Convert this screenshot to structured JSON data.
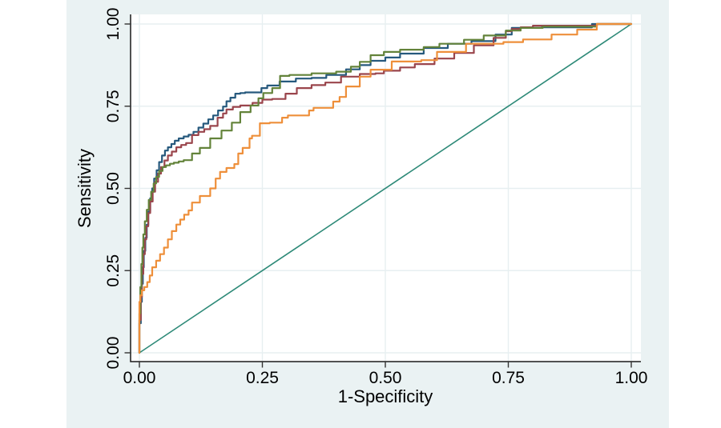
{
  "chart_data": {
    "type": "line",
    "subtype": "roc-curves",
    "title": "",
    "xlabel": "1-Specificity",
    "ylabel": "Sensitivity",
    "xlim": [
      0,
      1
    ],
    "ylim": [
      0,
      1
    ],
    "x_ticks": [
      0,
      0.25,
      0.5,
      0.75,
      1
    ],
    "y_ticks": [
      0,
      0.25,
      0.5,
      0.75,
      1
    ],
    "x_tick_labels": [
      "0.00",
      "0.25",
      "0.50",
      "0.75",
      "1.00"
    ],
    "y_tick_labels": [
      "0.00",
      "0.25",
      "0.50",
      "0.75",
      "1.00"
    ],
    "grid": "both",
    "legend_position": "none",
    "colors": {
      "graph_region_bg": "#eaf2f3",
      "plot_bg": "#ffffff",
      "gridline": "#e7eff1",
      "axis": "#1a1a1a",
      "tick": "#333333"
    },
    "series": [
      {
        "id": "reference",
        "name": "reference-diagonal",
        "color": "#2e8a78",
        "width": 1.6,
        "step": false,
        "points": [
          [
            0,
            0
          ],
          [
            1,
            1
          ]
        ]
      },
      {
        "id": "navy",
        "name": "roc-curve-navy",
        "color": "#26597d",
        "width": 2.2,
        "step": true,
        "points": [
          [
            0,
            0
          ],
          [
            0.003,
            0.09
          ],
          [
            0.005,
            0.155
          ],
          [
            0.007,
            0.21
          ],
          [
            0.009,
            0.26
          ],
          [
            0.012,
            0.31
          ],
          [
            0.015,
            0.35
          ],
          [
            0.018,
            0.39
          ],
          [
            0.022,
            0.43
          ],
          [
            0.026,
            0.47
          ],
          [
            0.03,
            0.5
          ],
          [
            0.035,
            0.53
          ],
          [
            0.04,
            0.555
          ],
          [
            0.046,
            0.58
          ],
          [
            0.052,
            0.6
          ],
          [
            0.058,
            0.615
          ],
          [
            0.065,
            0.625
          ],
          [
            0.072,
            0.635
          ],
          [
            0.08,
            0.645
          ],
          [
            0.09,
            0.652
          ],
          [
            0.1,
            0.658
          ],
          [
            0.11,
            0.663
          ],
          [
            0.12,
            0.672
          ],
          [
            0.13,
            0.685
          ],
          [
            0.14,
            0.697
          ],
          [
            0.15,
            0.71
          ],
          [
            0.16,
            0.722
          ],
          [
            0.17,
            0.737
          ],
          [
            0.177,
            0.749
          ],
          [
            0.185,
            0.765
          ],
          [
            0.195,
            0.776
          ],
          [
            0.205,
            0.788
          ],
          [
            0.215,
            0.79
          ],
          [
            0.248,
            0.792
          ],
          [
            0.26,
            0.805
          ],
          [
            0.285,
            0.813
          ],
          [
            0.318,
            0.825
          ],
          [
            0.35,
            0.834
          ],
          [
            0.38,
            0.836
          ],
          [
            0.42,
            0.845
          ],
          [
            0.448,
            0.862
          ],
          [
            0.47,
            0.875
          ],
          [
            0.5,
            0.888
          ],
          [
            0.53,
            0.898
          ],
          [
            0.578,
            0.91
          ],
          [
            0.627,
            0.927
          ],
          [
            0.675,
            0.94
          ],
          [
            0.724,
            0.948
          ],
          [
            0.757,
            0.968
          ],
          [
            0.818,
            0.988
          ],
          [
            0.92,
            0.99
          ],
          [
            0.95,
            1
          ],
          [
            1,
            1
          ]
        ]
      },
      {
        "id": "maroon",
        "name": "roc-curve-maroon",
        "color": "#9a454c",
        "width": 2.2,
        "step": true,
        "points": [
          [
            0,
            0
          ],
          [
            0.003,
            0.1
          ],
          [
            0.005,
            0.17
          ],
          [
            0.008,
            0.24
          ],
          [
            0.011,
            0.3
          ],
          [
            0.014,
            0.345
          ],
          [
            0.018,
            0.385
          ],
          [
            0.022,
            0.425
          ],
          [
            0.027,
            0.46
          ],
          [
            0.032,
            0.49
          ],
          [
            0.038,
            0.52
          ],
          [
            0.044,
            0.545
          ],
          [
            0.051,
            0.565
          ],
          [
            0.058,
            0.585
          ],
          [
            0.066,
            0.6
          ],
          [
            0.075,
            0.612
          ],
          [
            0.085,
            0.625
          ],
          [
            0.095,
            0.632
          ],
          [
            0.107,
            0.638
          ],
          [
            0.12,
            0.662
          ],
          [
            0.132,
            0.672
          ],
          [
            0.144,
            0.68
          ],
          [
            0.159,
            0.69
          ],
          [
            0.17,
            0.715
          ],
          [
            0.177,
            0.728
          ],
          [
            0.19,
            0.74
          ],
          [
            0.205,
            0.748
          ],
          [
            0.23,
            0.752
          ],
          [
            0.25,
            0.76
          ],
          [
            0.27,
            0.77
          ],
          [
            0.297,
            0.772
          ],
          [
            0.32,
            0.788
          ],
          [
            0.35,
            0.805
          ],
          [
            0.378,
            0.814
          ],
          [
            0.41,
            0.822
          ],
          [
            0.448,
            0.84
          ],
          [
            0.48,
            0.848
          ],
          [
            0.497,
            0.85
          ],
          [
            0.53,
            0.858
          ],
          [
            0.56,
            0.868
          ],
          [
            0.6,
            0.878
          ],
          [
            0.64,
            0.895
          ],
          [
            0.68,
            0.912
          ],
          [
            0.72,
            0.935
          ],
          [
            0.745,
            0.958
          ],
          [
            0.757,
            0.978
          ],
          [
            0.775,
            0.985
          ],
          [
            0.8,
            0.99
          ],
          [
            0.93,
            0.995
          ],
          [
            0.96,
            1
          ],
          [
            1,
            1
          ]
        ]
      },
      {
        "id": "green",
        "name": "roc-curve-green",
        "color": "#63833a",
        "width": 2.2,
        "step": true,
        "points": [
          [
            0,
            0
          ],
          [
            0.002,
            0.12
          ],
          [
            0.004,
            0.2
          ],
          [
            0.006,
            0.27
          ],
          [
            0.008,
            0.32
          ],
          [
            0.011,
            0.36
          ],
          [
            0.015,
            0.4
          ],
          [
            0.019,
            0.435
          ],
          [
            0.024,
            0.465
          ],
          [
            0.029,
            0.49
          ],
          [
            0.034,
            0.515
          ],
          [
            0.04,
            0.535
          ],
          [
            0.047,
            0.553
          ],
          [
            0.054,
            0.565
          ],
          [
            0.062,
            0.57
          ],
          [
            0.07,
            0.575
          ],
          [
            0.08,
            0.578
          ],
          [
            0.09,
            0.582
          ],
          [
            0.107,
            0.586
          ],
          [
            0.123,
            0.606
          ],
          [
            0.144,
            0.623
          ],
          [
            0.167,
            0.652
          ],
          [
            0.188,
            0.676
          ],
          [
            0.205,
            0.7
          ],
          [
            0.226,
            0.732
          ],
          [
            0.242,
            0.752
          ],
          [
            0.252,
            0.774
          ],
          [
            0.27,
            0.79
          ],
          [
            0.286,
            0.805
          ],
          [
            0.305,
            0.842
          ],
          [
            0.35,
            0.845
          ],
          [
            0.4,
            0.85
          ],
          [
            0.43,
            0.855
          ],
          [
            0.448,
            0.87
          ],
          [
            0.47,
            0.885
          ],
          [
            0.497,
            0.905
          ],
          [
            0.53,
            0.915
          ],
          [
            0.578,
            0.922
          ],
          [
            0.61,
            0.93
          ],
          [
            0.66,
            0.94
          ],
          [
            0.7,
            0.952
          ],
          [
            0.745,
            0.965
          ],
          [
            0.775,
            0.98
          ],
          [
            0.82,
            0.988
          ],
          [
            0.93,
            0.992
          ],
          [
            0.955,
            1
          ],
          [
            1,
            1
          ]
        ]
      },
      {
        "id": "orange",
        "name": "roc-curve-orange",
        "color": "#ee8f3a",
        "width": 2.2,
        "step": true,
        "points": [
          [
            0,
            0
          ],
          [
            0.002,
            0.155
          ],
          [
            0.005,
            0.175
          ],
          [
            0.01,
            0.19
          ],
          [
            0.016,
            0.2
          ],
          [
            0.021,
            0.215
          ],
          [
            0.026,
            0.235
          ],
          [
            0.034,
            0.26
          ],
          [
            0.042,
            0.28
          ],
          [
            0.05,
            0.3
          ],
          [
            0.058,
            0.32
          ],
          [
            0.066,
            0.345
          ],
          [
            0.075,
            0.37
          ],
          [
            0.083,
            0.39
          ],
          [
            0.091,
            0.405
          ],
          [
            0.1,
            0.42
          ],
          [
            0.107,
            0.433
          ],
          [
            0.123,
            0.457
          ],
          [
            0.144,
            0.477
          ],
          [
            0.155,
            0.5
          ],
          [
            0.164,
            0.53
          ],
          [
            0.177,
            0.55
          ],
          [
            0.193,
            0.562
          ],
          [
            0.201,
            0.574
          ],
          [
            0.21,
            0.606
          ],
          [
            0.224,
            0.623
          ],
          [
            0.229,
            0.652
          ],
          [
            0.245,
            0.66
          ],
          [
            0.265,
            0.698
          ],
          [
            0.29,
            0.7
          ],
          [
            0.302,
            0.715
          ],
          [
            0.345,
            0.722
          ],
          [
            0.354,
            0.737
          ],
          [
            0.394,
            0.745
          ],
          [
            0.407,
            0.764
          ],
          [
            0.42,
            0.778
          ],
          [
            0.448,
            0.81
          ],
          [
            0.47,
            0.84
          ],
          [
            0.513,
            0.861
          ],
          [
            0.573,
            0.886
          ],
          [
            0.605,
            0.89
          ],
          [
            0.664,
            0.915
          ],
          [
            0.74,
            0.94
          ],
          [
            0.78,
            0.945
          ],
          [
            0.838,
            0.953
          ],
          [
            0.89,
            0.968
          ],
          [
            0.93,
            0.983
          ],
          [
            0.975,
            1
          ],
          [
            1,
            1
          ]
        ]
      }
    ]
  }
}
